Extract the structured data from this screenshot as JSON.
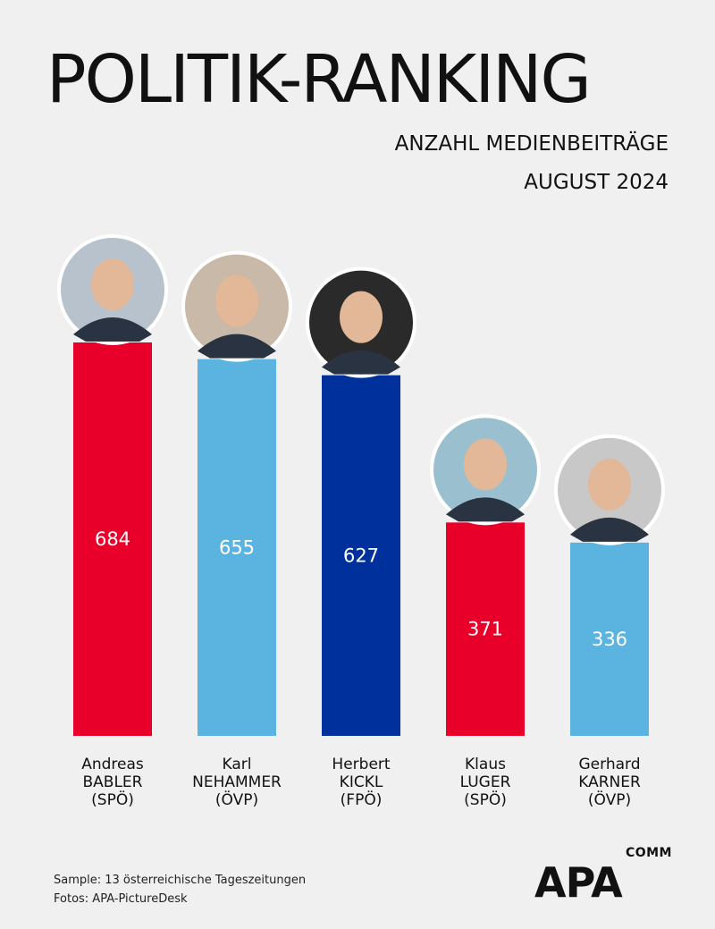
{
  "header": {
    "title": "POLITIK-RANKING",
    "subtitle": "ANZAHL MEDIENBEITRÄGE",
    "period": "AUGUST 2024"
  },
  "chart_data": {
    "type": "bar",
    "title": "POLITIK-RANKING",
    "subtitle": "ANZAHL MEDIENBEITRÄGE",
    "xlabel": "",
    "ylabel": "",
    "ylim": [
      0,
      684
    ],
    "grid": false,
    "legend": "none",
    "categories": [
      [
        "Andreas",
        "BABLER",
        "(SPÖ)"
      ],
      [
        "Karl",
        "NEHAMMER",
        "(ÖVP)"
      ],
      [
        "Herbert",
        "KICKL",
        "(FPÖ)"
      ],
      [
        "Klaus",
        "LUGER",
        "(SPÖ)"
      ],
      [
        "Gerhard",
        "KARNER",
        "(ÖVP)"
      ]
    ],
    "values": [
      684,
      655,
      627,
      371,
      336
    ],
    "colors": [
      "#e8002b",
      "#5bb4e0",
      "#00309b",
      "#e8002b",
      "#5bb4e0"
    ],
    "photo_colors": [
      "#b8c2cc",
      "#c9b9a8",
      "#2a2a2a",
      "#9ac0d0",
      "#c8c8c8"
    ]
  },
  "footer": {
    "sample": "Sample: 13 österreichische Tageszeitungen",
    "photos": "Fotos: APA-PictureDesk"
  },
  "logo": {
    "brand": "APA",
    "suffix": "COMM"
  }
}
